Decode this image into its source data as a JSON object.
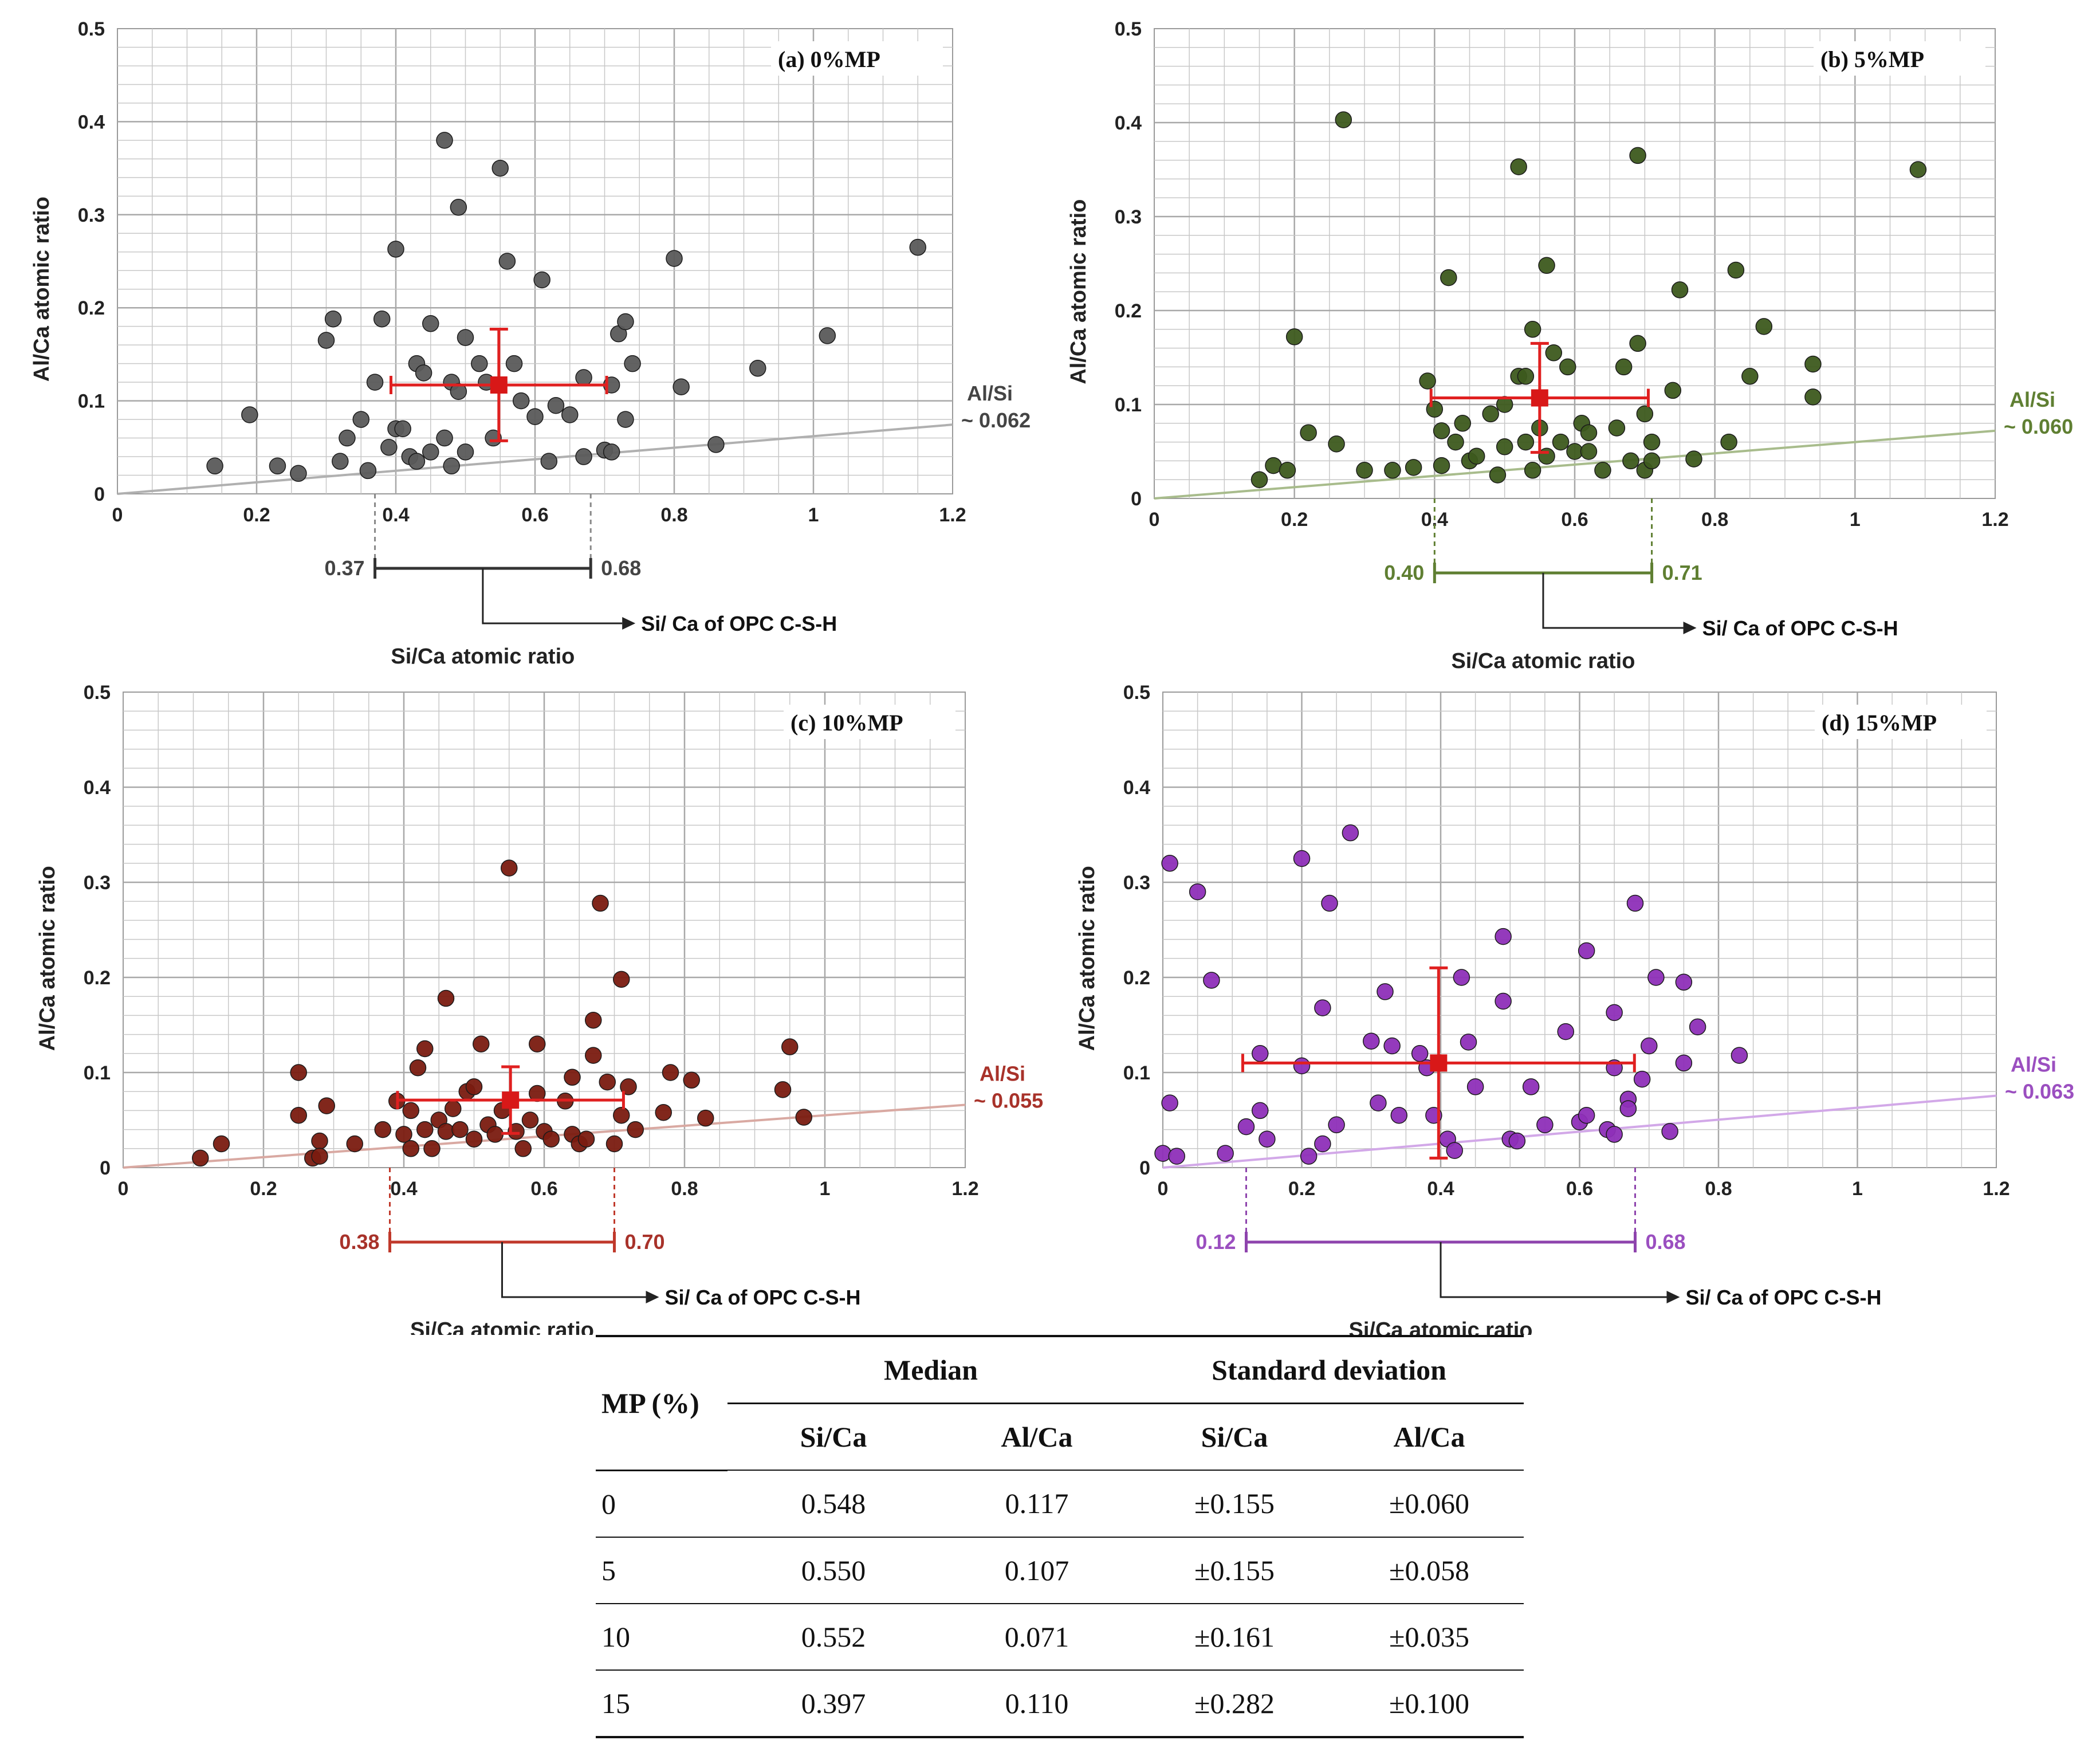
{
  "chart_data": [
    {
      "type": "scatter",
      "tag": "(a) 0%MP",
      "xlabel": "Si/Ca atomic ratio",
      "ylabel": "Al/Ca atomic ratio",
      "xlim": [
        0,
        1.2
      ],
      "ylim": [
        0,
        0.5
      ],
      "x_ticks": [
        "0",
        "0.2",
        "0.4",
        "0.6",
        "0.8",
        "1",
        "1.2"
      ],
      "y_ticks": [
        "0",
        "0.1",
        "0.2",
        "0.3",
        "0.4",
        "0.5"
      ],
      "color": "#5a5a5a",
      "line_color": "#b0b0b0",
      "slope": 0.062,
      "line_label": "Al/Si",
      "line_value": "~ 0.062",
      "median": {
        "x": 0.548,
        "y": 0.117
      },
      "sd": {
        "x": 0.155,
        "y": 0.06
      },
      "range_low": "0.37",
      "range_high": "0.68",
      "range": [
        0.37,
        0.68
      ],
      "range_color": "#333333",
      "anno_color": "#444444",
      "opc_label": "Si/ Ca of OPC C-S-H",
      "points": [
        [
          0.14,
          0.03
        ],
        [
          0.19,
          0.085
        ],
        [
          0.23,
          0.03
        ],
        [
          0.26,
          0.022
        ],
        [
          0.3,
          0.165
        ],
        [
          0.31,
          0.188
        ],
        [
          0.32,
          0.035
        ],
        [
          0.33,
          0.06
        ],
        [
          0.35,
          0.08
        ],
        [
          0.36,
          0.025
        ],
        [
          0.37,
          0.12
        ],
        [
          0.38,
          0.188
        ],
        [
          0.39,
          0.05
        ],
        [
          0.4,
          0.07
        ],
        [
          0.4,
          0.263
        ],
        [
          0.41,
          0.07
        ],
        [
          0.42,
          0.04
        ],
        [
          0.43,
          0.035
        ],
        [
          0.43,
          0.14
        ],
        [
          0.44,
          0.13
        ],
        [
          0.45,
          0.045
        ],
        [
          0.45,
          0.183
        ],
        [
          0.47,
          0.06
        ],
        [
          0.47,
          0.38
        ],
        [
          0.48,
          0.03
        ],
        [
          0.48,
          0.12
        ],
        [
          0.49,
          0.11
        ],
        [
          0.5,
          0.045
        ],
        [
          0.5,
          0.168
        ],
        [
          0.49,
          0.308
        ],
        [
          0.52,
          0.14
        ],
        [
          0.53,
          0.12
        ],
        [
          0.54,
          0.06
        ],
        [
          0.55,
          0.35
        ],
        [
          0.56,
          0.25
        ],
        [
          0.57,
          0.14
        ],
        [
          0.58,
          0.1
        ],
        [
          0.6,
          0.083
        ],
        [
          0.61,
          0.23
        ],
        [
          0.62,
          0.035
        ],
        [
          0.63,
          0.095
        ],
        [
          0.65,
          0.085
        ],
        [
          0.67,
          0.04
        ],
        [
          0.67,
          0.125
        ],
        [
          0.7,
          0.047
        ],
        [
          0.71,
          0.045
        ],
        [
          0.71,
          0.117
        ],
        [
          0.72,
          0.172
        ],
        [
          0.73,
          0.185
        ],
        [
          0.73,
          0.08
        ],
        [
          0.74,
          0.14
        ],
        [
          0.8,
          0.253
        ],
        [
          0.81,
          0.115
        ],
        [
          0.86,
          0.053
        ],
        [
          0.92,
          0.135
        ],
        [
          1.02,
          0.17
        ],
        [
          1.15,
          0.265
        ]
      ]
    },
    {
      "type": "scatter",
      "tag": "(b) 5%MP",
      "xlabel": "Si/Ca atomic ratio",
      "ylabel": "Al/Ca atomic ratio",
      "xlim": [
        0,
        1.2
      ],
      "ylim": [
        0,
        0.5
      ],
      "x_ticks": [
        "0",
        "0.2",
        "0.4",
        "0.6",
        "0.8",
        "1",
        "1.2"
      ],
      "y_ticks": [
        "0",
        "0.1",
        "0.2",
        "0.3",
        "0.4",
        "0.5"
      ],
      "color": "#3d5a1e",
      "line_color": "#a8bc8c",
      "slope": 0.06,
      "line_label": "Al/Si",
      "line_value": "~ 0.060",
      "median": {
        "x": 0.55,
        "y": 0.107
      },
      "sd": {
        "x": 0.155,
        "y": 0.058
      },
      "range_low": "0.40",
      "range_high": "0.71",
      "range": [
        0.4,
        0.71
      ],
      "range_color": "#5f7f32",
      "anno_color": "#5f7f32",
      "opc_label": "Si/ Ca of OPC C-S-H",
      "points": [
        [
          0.15,
          0.02
        ],
        [
          0.17,
          0.035
        ],
        [
          0.19,
          0.03
        ],
        [
          0.2,
          0.172
        ],
        [
          0.22,
          0.07
        ],
        [
          0.26,
          0.058
        ],
        [
          0.27,
          0.403
        ],
        [
          0.3,
          0.03
        ],
        [
          0.34,
          0.03
        ],
        [
          0.37,
          0.033
        ],
        [
          0.39,
          0.125
        ],
        [
          0.4,
          0.095
        ],
        [
          0.41,
          0.072
        ],
        [
          0.41,
          0.035
        ],
        [
          0.42,
          0.235
        ],
        [
          0.43,
          0.06
        ],
        [
          0.44,
          0.08
        ],
        [
          0.45,
          0.04
        ],
        [
          0.46,
          0.045
        ],
        [
          0.48,
          0.09
        ],
        [
          0.49,
          0.025
        ],
        [
          0.5,
          0.1
        ],
        [
          0.5,
          0.055
        ],
        [
          0.52,
          0.13
        ],
        [
          0.52,
          0.353
        ],
        [
          0.53,
          0.06
        ],
        [
          0.53,
          0.13
        ],
        [
          0.54,
          0.03
        ],
        [
          0.54,
          0.18
        ],
        [
          0.55,
          0.075
        ],
        [
          0.56,
          0.045
        ],
        [
          0.56,
          0.248
        ],
        [
          0.57,
          0.155
        ],
        [
          0.58,
          0.06
        ],
        [
          0.59,
          0.14
        ],
        [
          0.6,
          0.05
        ],
        [
          0.61,
          0.08
        ],
        [
          0.62,
          0.07
        ],
        [
          0.62,
          0.05
        ],
        [
          0.64,
          0.03
        ],
        [
          0.66,
          0.075
        ],
        [
          0.67,
          0.14
        ],
        [
          0.68,
          0.04
        ],
        [
          0.69,
          0.365
        ],
        [
          0.69,
          0.165
        ],
        [
          0.7,
          0.09
        ],
        [
          0.7,
          0.03
        ],
        [
          0.71,
          0.06
        ],
        [
          0.71,
          0.04
        ],
        [
          0.74,
          0.115
        ],
        [
          0.75,
          0.222
        ],
        [
          0.77,
          0.042
        ],
        [
          0.82,
          0.06
        ],
        [
          0.83,
          0.243
        ],
        [
          0.85,
          0.13
        ],
        [
          0.87,
          0.183
        ],
        [
          0.94,
          0.143
        ],
        [
          0.94,
          0.108
        ],
        [
          1.09,
          0.35
        ]
      ]
    },
    {
      "type": "scatter",
      "tag": "(c) 10%MP",
      "xlabel": "Si/Ca atomic ratio",
      "ylabel": "Al/Ca atomic ratio",
      "xlim": [
        0,
        1.2
      ],
      "ylim": [
        0,
        0.5
      ],
      "x_ticks": [
        "0",
        "0.2",
        "0.4",
        "0.6",
        "0.8",
        "1",
        "1.2"
      ],
      "y_ticks": [
        "0",
        "0.1",
        "0.2",
        "0.3",
        "0.4",
        "0.5"
      ],
      "color": "#7a1b10",
      "line_color": "#d9a9a2",
      "slope": 0.055,
      "line_label": "Al/Si",
      "line_value": "~ 0.055",
      "median": {
        "x": 0.552,
        "y": 0.071
      },
      "sd": {
        "x": 0.161,
        "y": 0.035
      },
      "range_low": "0.38",
      "range_high": "0.70",
      "range": [
        0.38,
        0.7
      ],
      "range_color": "#c0392b",
      "anno_color": "#a8322a",
      "opc_label": "Si/ Ca of OPC C-S-H",
      "points": [
        [
          0.11,
          0.01
        ],
        [
          0.14,
          0.025
        ],
        [
          0.25,
          0.1
        ],
        [
          0.25,
          0.055
        ],
        [
          0.27,
          0.01
        ],
        [
          0.28,
          0.028
        ],
        [
          0.28,
          0.012
        ],
        [
          0.29,
          0.065
        ],
        [
          0.33,
          0.025
        ],
        [
          0.37,
          0.04
        ],
        [
          0.39,
          0.07
        ],
        [
          0.4,
          0.035
        ],
        [
          0.41,
          0.02
        ],
        [
          0.41,
          0.06
        ],
        [
          0.42,
          0.105
        ],
        [
          0.43,
          0.125
        ],
        [
          0.43,
          0.04
        ],
        [
          0.44,
          0.02
        ],
        [
          0.45,
          0.05
        ],
        [
          0.46,
          0.038
        ],
        [
          0.46,
          0.178
        ],
        [
          0.47,
          0.062
        ],
        [
          0.48,
          0.04
        ],
        [
          0.49,
          0.08
        ],
        [
          0.5,
          0.03
        ],
        [
          0.5,
          0.085
        ],
        [
          0.51,
          0.13
        ],
        [
          0.52,
          0.045
        ],
        [
          0.53,
          0.035
        ],
        [
          0.54,
          0.06
        ],
        [
          0.55,
          0.315
        ],
        [
          0.56,
          0.038
        ],
        [
          0.57,
          0.02
        ],
        [
          0.58,
          0.05
        ],
        [
          0.59,
          0.13
        ],
        [
          0.59,
          0.078
        ],
        [
          0.6,
          0.038
        ],
        [
          0.61,
          0.03
        ],
        [
          0.63,
          0.07
        ],
        [
          0.64,
          0.035
        ],
        [
          0.64,
          0.095
        ],
        [
          0.65,
          0.025
        ],
        [
          0.66,
          0.03
        ],
        [
          0.67,
          0.155
        ],
        [
          0.67,
          0.118
        ],
        [
          0.68,
          0.278
        ],
        [
          0.69,
          0.09
        ],
        [
          0.7,
          0.025
        ],
        [
          0.71,
          0.055
        ],
        [
          0.71,
          0.198
        ],
        [
          0.72,
          0.085
        ],
        [
          0.73,
          0.04
        ],
        [
          0.77,
          0.058
        ],
        [
          0.78,
          0.1
        ],
        [
          0.81,
          0.092
        ],
        [
          0.83,
          0.052
        ],
        [
          0.94,
          0.082
        ],
        [
          0.95,
          0.127
        ],
        [
          0.97,
          0.053
        ]
      ]
    },
    {
      "type": "scatter",
      "tag": "(d) 15%MP",
      "xlabel": "Si/Ca atomic ratio",
      "ylabel": "Al/Ca atomic ratio",
      "xlim": [
        0,
        1.2
      ],
      "ylim": [
        0,
        0.5
      ],
      "x_ticks": [
        "0",
        "0.2",
        "0.4",
        "0.6",
        "0.8",
        "1",
        "1.2"
      ],
      "y_ticks": [
        "0",
        "0.1",
        "0.2",
        "0.3",
        "0.4",
        "0.5"
      ],
      "color": "#8e2fb8",
      "line_color": "#d2a8e8",
      "slope": 0.063,
      "line_label": "Al/Si",
      "line_value": "~ 0.063",
      "median": {
        "x": 0.397,
        "y": 0.11
      },
      "sd": {
        "x": 0.282,
        "y": 0.1
      },
      "range_low": "0.12",
      "range_high": "0.68",
      "range": [
        0.12,
        0.68
      ],
      "range_color": "#8e44ad",
      "anno_color": "#9b4fc0",
      "opc_label": "Si/ Ca of OPC C-S-H",
      "points": [
        [
          0.0,
          0.015
        ],
        [
          0.01,
          0.32
        ],
        [
          0.01,
          0.068
        ],
        [
          0.02,
          0.012
        ],
        [
          0.05,
          0.29
        ],
        [
          0.07,
          0.197
        ],
        [
          0.09,
          0.015
        ],
        [
          0.12,
          0.043
        ],
        [
          0.14,
          0.12
        ],
        [
          0.14,
          0.06
        ],
        [
          0.15,
          0.03
        ],
        [
          0.2,
          0.325
        ],
        [
          0.2,
          0.107
        ],
        [
          0.21,
          0.012
        ],
        [
          0.23,
          0.168
        ],
        [
          0.23,
          0.025
        ],
        [
          0.24,
          0.278
        ],
        [
          0.25,
          0.045
        ],
        [
          0.27,
          0.352
        ],
        [
          0.3,
          0.133
        ],
        [
          0.31,
          0.068
        ],
        [
          0.32,
          0.185
        ],
        [
          0.33,
          0.128
        ],
        [
          0.34,
          0.055
        ],
        [
          0.37,
          0.12
        ],
        [
          0.38,
          0.105
        ],
        [
          0.39,
          0.055
        ],
        [
          0.41,
          0.03
        ],
        [
          0.42,
          0.018
        ],
        [
          0.43,
          0.2
        ],
        [
          0.44,
          0.132
        ],
        [
          0.45,
          0.085
        ],
        [
          0.49,
          0.175
        ],
        [
          0.49,
          0.243
        ],
        [
          0.5,
          0.03
        ],
        [
          0.51,
          0.028
        ],
        [
          0.53,
          0.085
        ],
        [
          0.55,
          0.045
        ],
        [
          0.58,
          0.143
        ],
        [
          0.6,
          0.048
        ],
        [
          0.61,
          0.228
        ],
        [
          0.61,
          0.055
        ],
        [
          0.64,
          0.04
        ],
        [
          0.65,
          0.105
        ],
        [
          0.65,
          0.035
        ],
        [
          0.65,
          0.163
        ],
        [
          0.67,
          0.072
        ],
        [
          0.67,
          0.062
        ],
        [
          0.68,
          0.278
        ],
        [
          0.69,
          0.093
        ],
        [
          0.7,
          0.128
        ],
        [
          0.71,
          0.2
        ],
        [
          0.73,
          0.038
        ],
        [
          0.75,
          0.195
        ],
        [
          0.75,
          0.11
        ],
        [
          0.77,
          0.148
        ],
        [
          0.83,
          0.118
        ]
      ]
    }
  ],
  "table": {
    "headers": {
      "mp": "MP (%)",
      "median": "Median",
      "sd": "Standard deviation",
      "si_ca": "Si/Ca",
      "al_ca": "Al/Ca"
    },
    "rows": [
      {
        "mp": "0",
        "median_si_ca": "0.548",
        "median_al_ca": "0.117",
        "sd_si_ca": "±0.155",
        "sd_al_ca": "±0.060"
      },
      {
        "mp": "5",
        "median_si_ca": "0.550",
        "median_al_ca": "0.107",
        "sd_si_ca": "±0.155",
        "sd_al_ca": "±0.058"
      },
      {
        "mp": "10",
        "median_si_ca": "0.552",
        "median_al_ca": "0.071",
        "sd_si_ca": "±0.161",
        "sd_al_ca": "±0.035"
      },
      {
        "mp": "15",
        "median_si_ca": "0.397",
        "median_al_ca": "0.110",
        "sd_si_ca": "±0.282",
        "sd_al_ca": "±0.100"
      }
    ]
  }
}
